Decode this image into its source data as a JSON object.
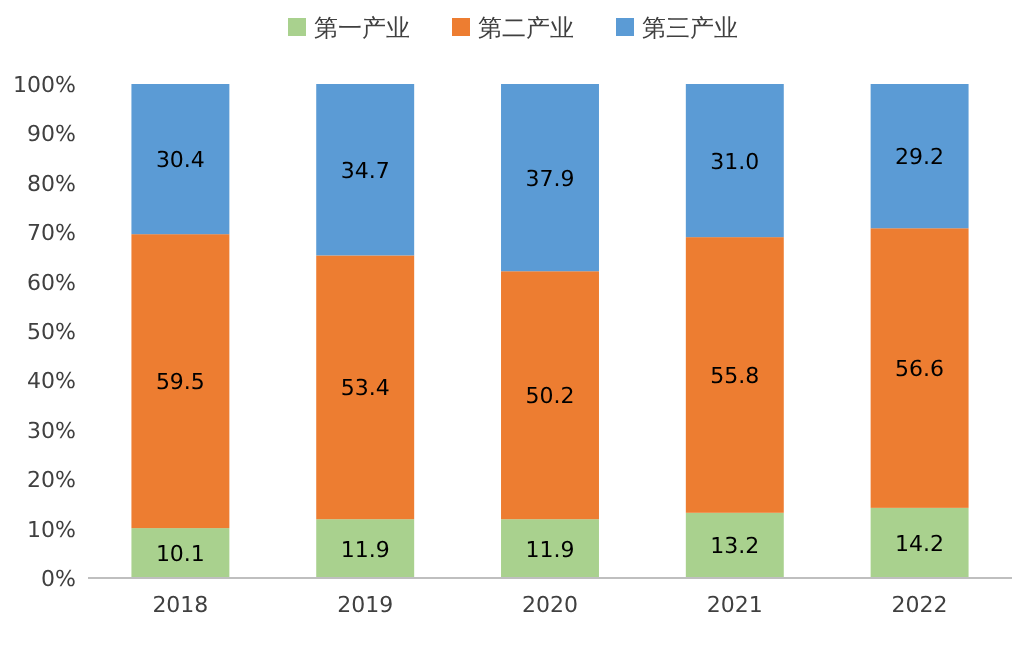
{
  "chart_data": {
    "type": "bar",
    "stacked": true,
    "categories": [
      "2018",
      "2019",
      "2020",
      "2021",
      "2022"
    ],
    "series": [
      {
        "name": "第一产业",
        "color": "#a9d18e",
        "values": [
          10.1,
          11.9,
          11.9,
          13.2,
          14.2
        ],
        "value_labels": [
          "10.1",
          "11.9",
          "11.9",
          "13.2",
          "14.2"
        ]
      },
      {
        "name": "第二产业",
        "color": "#ed7d31",
        "values": [
          59.5,
          53.4,
          50.2,
          55.8,
          56.6
        ],
        "value_labels": [
          "59.5",
          "53.4",
          "50.2",
          "55.8",
          "56.6"
        ]
      },
      {
        "name": "第三产业",
        "color": "#5b9bd5",
        "values": [
          30.4,
          34.7,
          37.9,
          31.0,
          29.2
        ],
        "value_labels": [
          "30.4",
          "34.7",
          "37.9",
          "31.0",
          "29.2"
        ]
      }
    ],
    "ylim": [
      0,
      100
    ],
    "yticks": [
      {
        "value": 0,
        "label": "0%"
      },
      {
        "value": 10,
        "label": "10%"
      },
      {
        "value": 20,
        "label": "20%"
      },
      {
        "value": 30,
        "label": "30%"
      },
      {
        "value": 40,
        "label": "40%"
      },
      {
        "value": 50,
        "label": "50%"
      },
      {
        "value": 60,
        "label": "60%"
      },
      {
        "value": 70,
        "label": "70%"
      },
      {
        "value": 80,
        "label": "80%"
      },
      {
        "value": 90,
        "label": "90%"
      },
      {
        "value": 100,
        "label": "100%"
      }
    ],
    "legend": "top"
  }
}
